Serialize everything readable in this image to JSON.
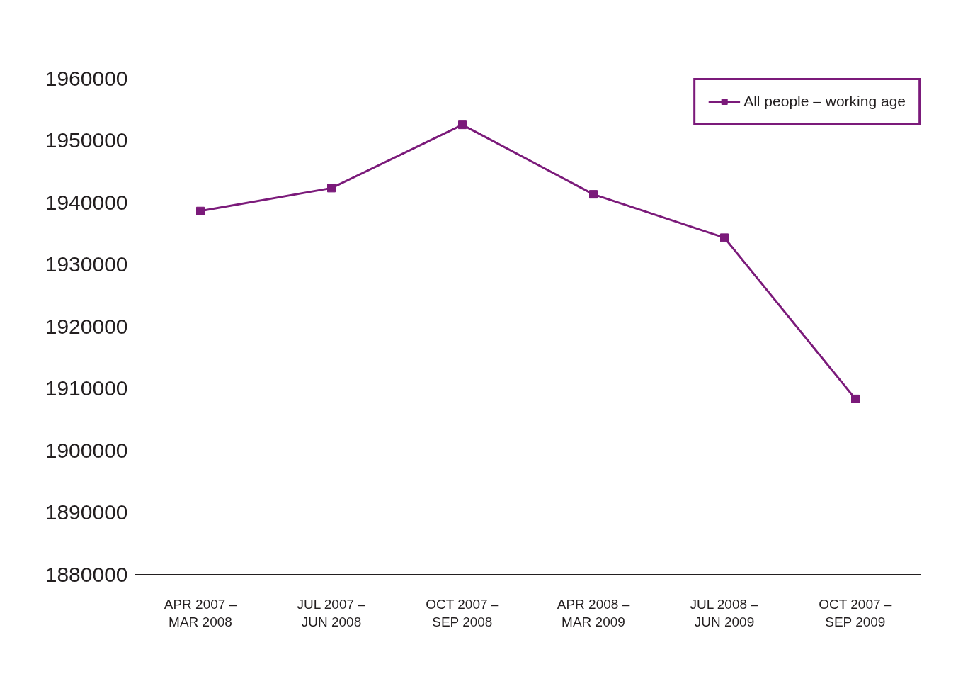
{
  "chart_data": {
    "type": "line",
    "categories": [
      "APR 2007 –\nMAR 2008",
      "JUL 2007 –\nJUN 2008",
      "OCT 2007 –\nSEP 2008",
      "APR 2008 –\nMAR 2009",
      "JUL 2008 –\nJUN 2009",
      "OCT 2007 –\nSEP 2009"
    ],
    "series": [
      {
        "name": "All people – working age",
        "color": "#7b1a7a",
        "values": [
          1938600,
          1942300,
          1952500,
          1941300,
          1934300,
          1908300
        ]
      }
    ],
    "ylim": [
      1880000,
      1960000
    ],
    "yticks": [
      1880000,
      1890000,
      1900000,
      1910000,
      1920000,
      1930000,
      1940000,
      1950000,
      1960000
    ],
    "marker": "square",
    "line_style": "solid",
    "grid": false,
    "legend": "top right"
  }
}
